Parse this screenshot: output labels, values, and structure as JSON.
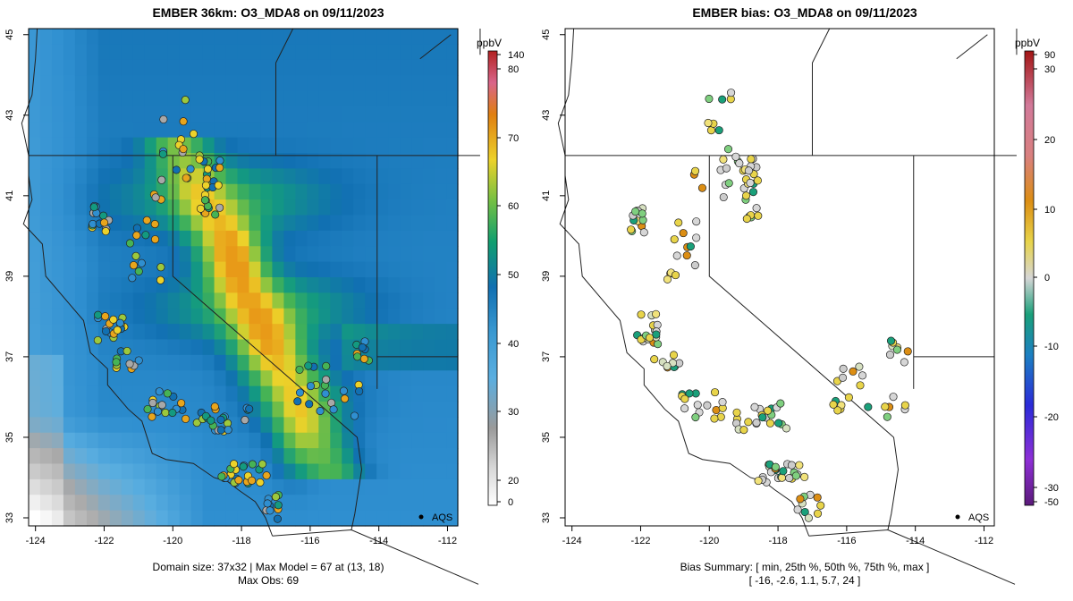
{
  "left_panel": {
    "title": "EMBER 36km: O3_MDA8 on 09/11/2023",
    "caption_line1": "Domain size: 37x32 | Max Model = 67 at (13, 18)",
    "caption_line2": "Max Obs: 69",
    "unit_label": "ppbV",
    "colorbar_ticks": [
      "140",
      "80",
      "70",
      "60",
      "50",
      "40",
      "30",
      "20",
      "0"
    ],
    "marker_label": "AQS",
    "x_ticks": [
      "-124",
      "-122",
      "-120",
      "-118",
      "-116",
      "-114",
      "-112"
    ],
    "y_ticks": [
      "33",
      "35",
      "37",
      "39",
      "41",
      "43",
      "45"
    ]
  },
  "right_panel": {
    "title": "EMBER bias: O3_MDA8 on 09/11/2023",
    "caption_line1": "Bias Summary: [ min, 25th %, 50th %, 75th %, max ]",
    "caption_line2": "[ -16,   -2.6,   1.1,   5.7,   24 ]",
    "unit_label": "ppbV",
    "colorbar_ticks": [
      "90",
      "30",
      "20",
      "10",
      "0",
      "-10",
      "-20",
      "-30",
      "-50"
    ],
    "marker_label": "AQS",
    "x_ticks": [
      "-124",
      "-122",
      "-120",
      "-118",
      "-116",
      "-114",
      "-112"
    ],
    "y_ticks": [
      "33",
      "35",
      "37",
      "39",
      "41",
      "43",
      "45"
    ]
  },
  "map_extent": {
    "lon": [
      -124.2,
      -111.7
    ],
    "lat": [
      32.8,
      45.15
    ]
  },
  "colors": {
    "state_line": "#222222",
    "marker": "#000000"
  }
}
